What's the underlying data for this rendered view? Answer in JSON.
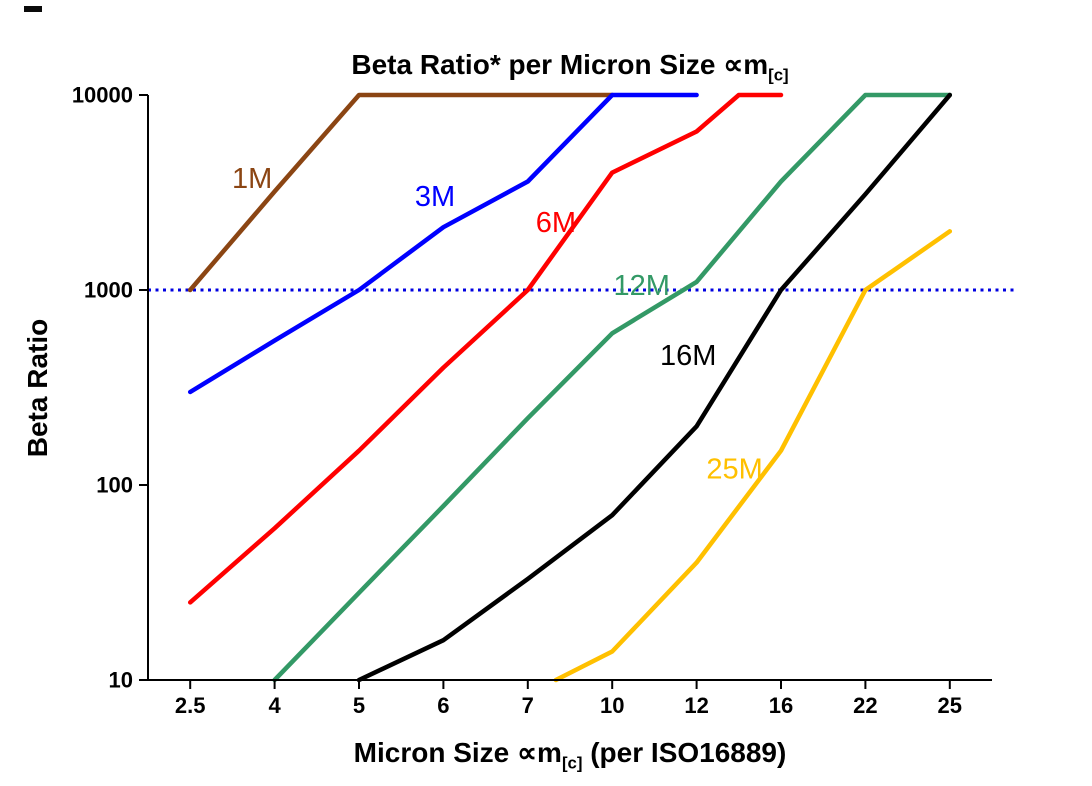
{
  "chart_data": {
    "type": "line",
    "title": {
      "prefix": "Beta Ratio* per Micron Size ",
      "symbol": "∝m",
      "subscript": "[c]"
    },
    "ylabel": "Beta Ratio",
    "xlabel": {
      "prefix": "Micron Size ",
      "symbol": "∝m",
      "subscript": "[c]",
      "suffix": " (per ISO16889)"
    },
    "x_axis": {
      "categories": [
        2.5,
        4,
        5,
        6,
        7,
        10,
        12,
        16,
        22,
        25
      ],
      "tick_labels": [
        "2.5",
        "4",
        "5",
        "6",
        "7",
        "10",
        "12",
        "16",
        "22",
        "25"
      ]
    },
    "y_axis": {
      "scale": "log",
      "min": 10,
      "max": 10000,
      "ticks": [
        10,
        100,
        1000,
        10000
      ],
      "tick_labels": [
        "10",
        "100",
        "1000",
        "10000"
      ]
    },
    "reference_line": {
      "y": 1000,
      "color": "#0000E0",
      "style": "dotted"
    },
    "series": [
      {
        "name": "1M",
        "color": "#8B4513",
        "points": [
          [
            2.5,
            1000
          ],
          [
            4,
            3200
          ],
          [
            5,
            10000
          ],
          [
            10,
            10000
          ]
        ]
      },
      {
        "name": "3M",
        "color": "#0000FF",
        "points": [
          [
            2.5,
            300
          ],
          [
            4,
            550
          ],
          [
            5,
            1000
          ],
          [
            6,
            2100
          ],
          [
            7,
            3600
          ],
          [
            10,
            10000
          ],
          [
            12,
            10000
          ]
        ]
      },
      {
        "name": "6M",
        "color": "#FF0000",
        "points": [
          [
            2.5,
            25
          ],
          [
            4,
            60
          ],
          [
            5,
            150
          ],
          [
            6,
            400
          ],
          [
            7,
            1000
          ],
          [
            10,
            4000
          ],
          [
            12,
            6500
          ],
          [
            14,
            10000
          ],
          [
            16,
            10000
          ]
        ]
      },
      {
        "name": "12M",
        "color": "#339966",
        "points": [
          [
            4,
            10
          ],
          [
            5,
            28
          ],
          [
            6,
            78
          ],
          [
            7,
            220
          ],
          [
            10,
            600
          ],
          [
            12,
            1100
          ],
          [
            16,
            3600
          ],
          [
            22,
            10000
          ],
          [
            25,
            10000
          ]
        ]
      },
      {
        "name": "16M",
        "color": "#000000",
        "points": [
          [
            5,
            10
          ],
          [
            6,
            16
          ],
          [
            7,
            33
          ],
          [
            10,
            70
          ],
          [
            12,
            200
          ],
          [
            16,
            1000
          ],
          [
            22,
            3100
          ],
          [
            25,
            10000
          ]
        ]
      },
      {
        "name": "25M",
        "color": "#FFC000",
        "points": [
          [
            8,
            10
          ],
          [
            10,
            14
          ],
          [
            12,
            40
          ],
          [
            16,
            150
          ],
          [
            22,
            1000
          ],
          [
            25,
            2000
          ]
        ]
      }
    ],
    "annotations": [
      {
        "text": "1M",
        "color": "#8B4513",
        "micron": 3.6,
        "beta": 3700
      },
      {
        "text": "3M",
        "color": "#0000FF",
        "micron": 5.9,
        "beta": 3000
      },
      {
        "text": "6M",
        "color": "#FF0000",
        "micron": 8.0,
        "beta": 2200
      },
      {
        "text": "12M",
        "color": "#339966",
        "micron": 10.7,
        "beta": 1050
      },
      {
        "text": "16M",
        "color": "#000000",
        "micron": 11.8,
        "beta": 460
      },
      {
        "text": "25M",
        "color": "#FFC000",
        "micron": 13.8,
        "beta": 120
      }
    ]
  }
}
